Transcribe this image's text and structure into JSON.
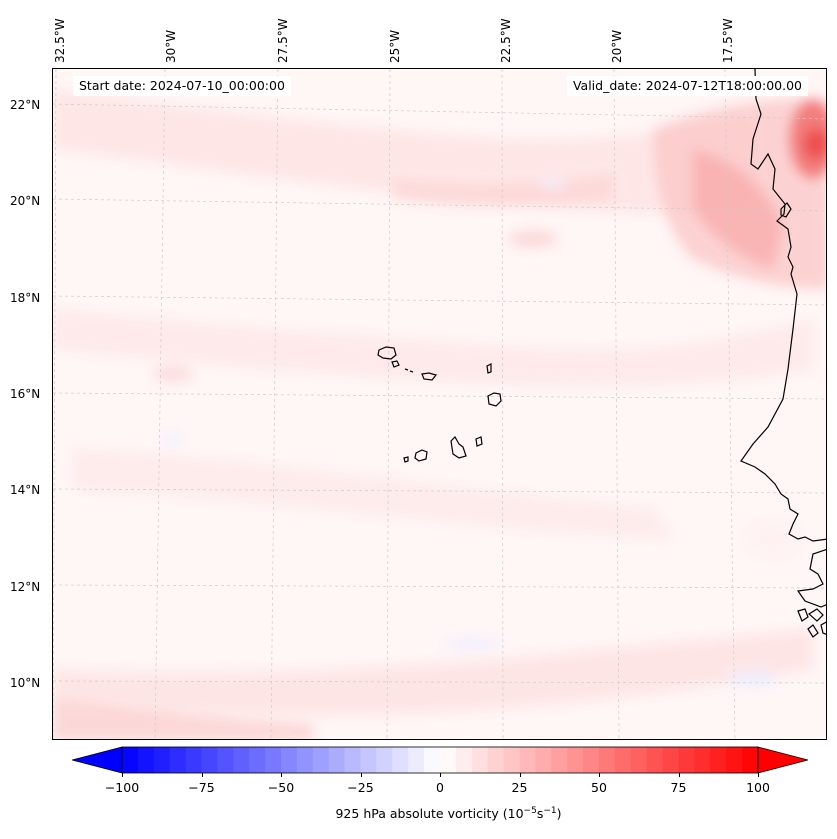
{
  "map": {
    "start_date": "Start date: 2024-07-10_00:00:00",
    "valid_date": "Valid_date: 2024-07-12T18:00:00.00",
    "lon_labels": [
      "32.5°W",
      "30°W",
      "27.5°W",
      "25°W",
      "22.5°W",
      "20°W",
      "17.5°W"
    ],
    "lat_labels": [
      "22°N",
      "20°N",
      "18°N",
      "16°N",
      "14°N",
      "12°N",
      "10°N"
    ],
    "coast_color": "#000000",
    "grid_color": "#cccccc"
  },
  "colorbar": {
    "label_prefix": "925 hPa absolute vorticity (10",
    "label_exp1": "−5",
    "label_mid": "s",
    "label_exp2": "−1",
    "label_suffix": ")",
    "min": -100,
    "max": 100,
    "ticks": [
      "−100",
      "−75",
      "−50",
      "−25",
      "0",
      "25",
      "50",
      "75",
      "100"
    ],
    "ticks_values": [
      -100,
      -75,
      -50,
      -25,
      0,
      25,
      50,
      75,
      100
    ],
    "low_color": "#0000ff",
    "mid_color": "#ffffff",
    "high_color": "#ff0000"
  }
}
